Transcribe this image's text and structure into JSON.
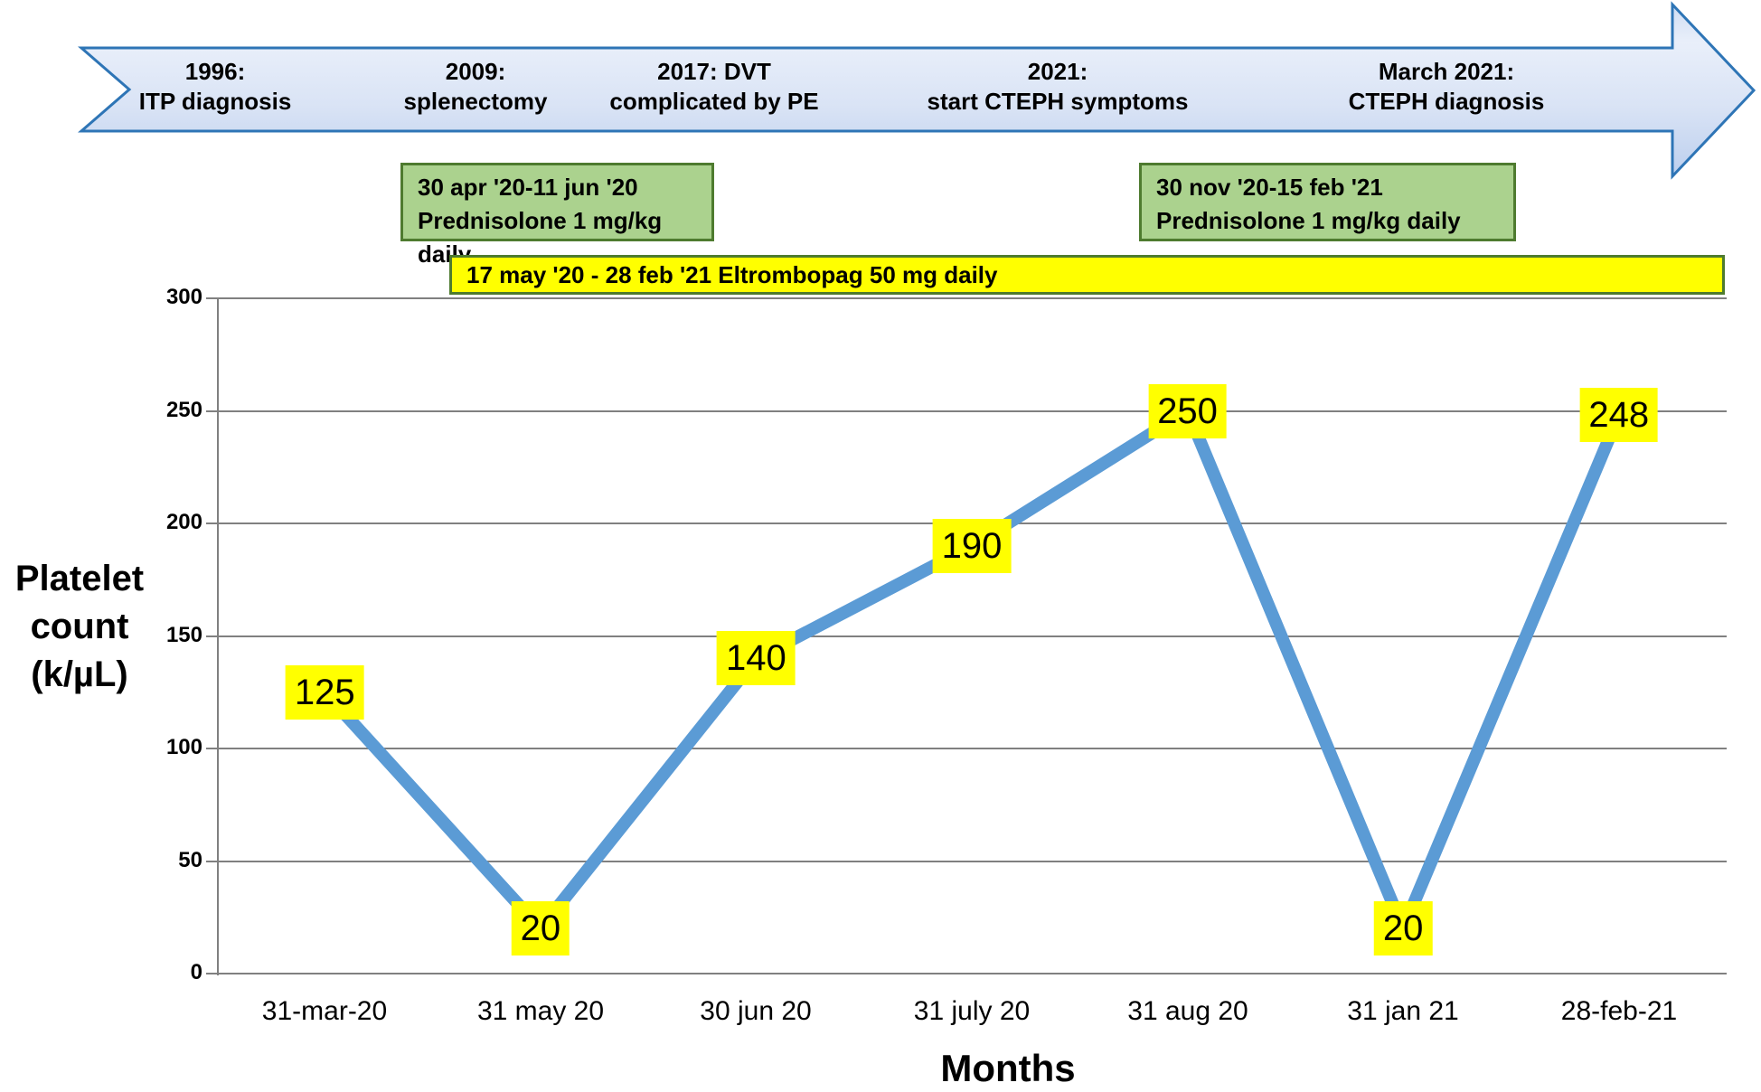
{
  "timeline": {
    "items": [
      {
        "text": "1996:\nITP diagnosis"
      },
      {
        "text": "2009:\nsplenectomy"
      },
      {
        "text": "2017: DVT\ncomplicated by PE"
      },
      {
        "text": "2021:\nstart CTEPH symptoms"
      },
      {
        "text": "March 2021:\nCTEPH diagnosis"
      }
    ]
  },
  "treatments": {
    "prednisolone_1": "30 apr '20-11 jun '20\nPrednisolone 1 mg/kg daily",
    "prednisolone_2": "30 nov '20-15 feb '21\nPrednisolone 1 mg/kg daily",
    "eltrombopag": "17 may '20 - 28 feb '21 Eltrombopag 50 mg daily"
  },
  "chart_data": {
    "type": "line",
    "title": "",
    "categories": [
      "31-mar-20",
      "31 may 20",
      "30 jun 20",
      "31 july 20",
      "31 aug 20",
      "31 jan 21",
      "28-feb-21"
    ],
    "values": [
      125,
      20,
      140,
      190,
      250,
      20,
      248
    ],
    "ylabel": "Platelet\ncount\n(k/µL)",
    "xlabel": "Months",
    "yticks": [
      0,
      50,
      100,
      150,
      200,
      250,
      300
    ],
    "ylim": [
      0,
      300
    ],
    "grid": true,
    "legend": "none",
    "line_color": "#5B9BD5",
    "data_label_bg": "#FFFF00"
  },
  "colors": {
    "arrow_border": "#2E75B6",
    "arrow_fill_light": "#E8EEFA",
    "arrow_fill_dark": "#C0D2EE",
    "treatment_green_fill": "#ABD28E",
    "treatment_green_border": "#4E7B2F",
    "highlight_yellow": "#FFFF00",
    "series_blue": "#5B9BD5",
    "grid_gray": "#808080"
  }
}
